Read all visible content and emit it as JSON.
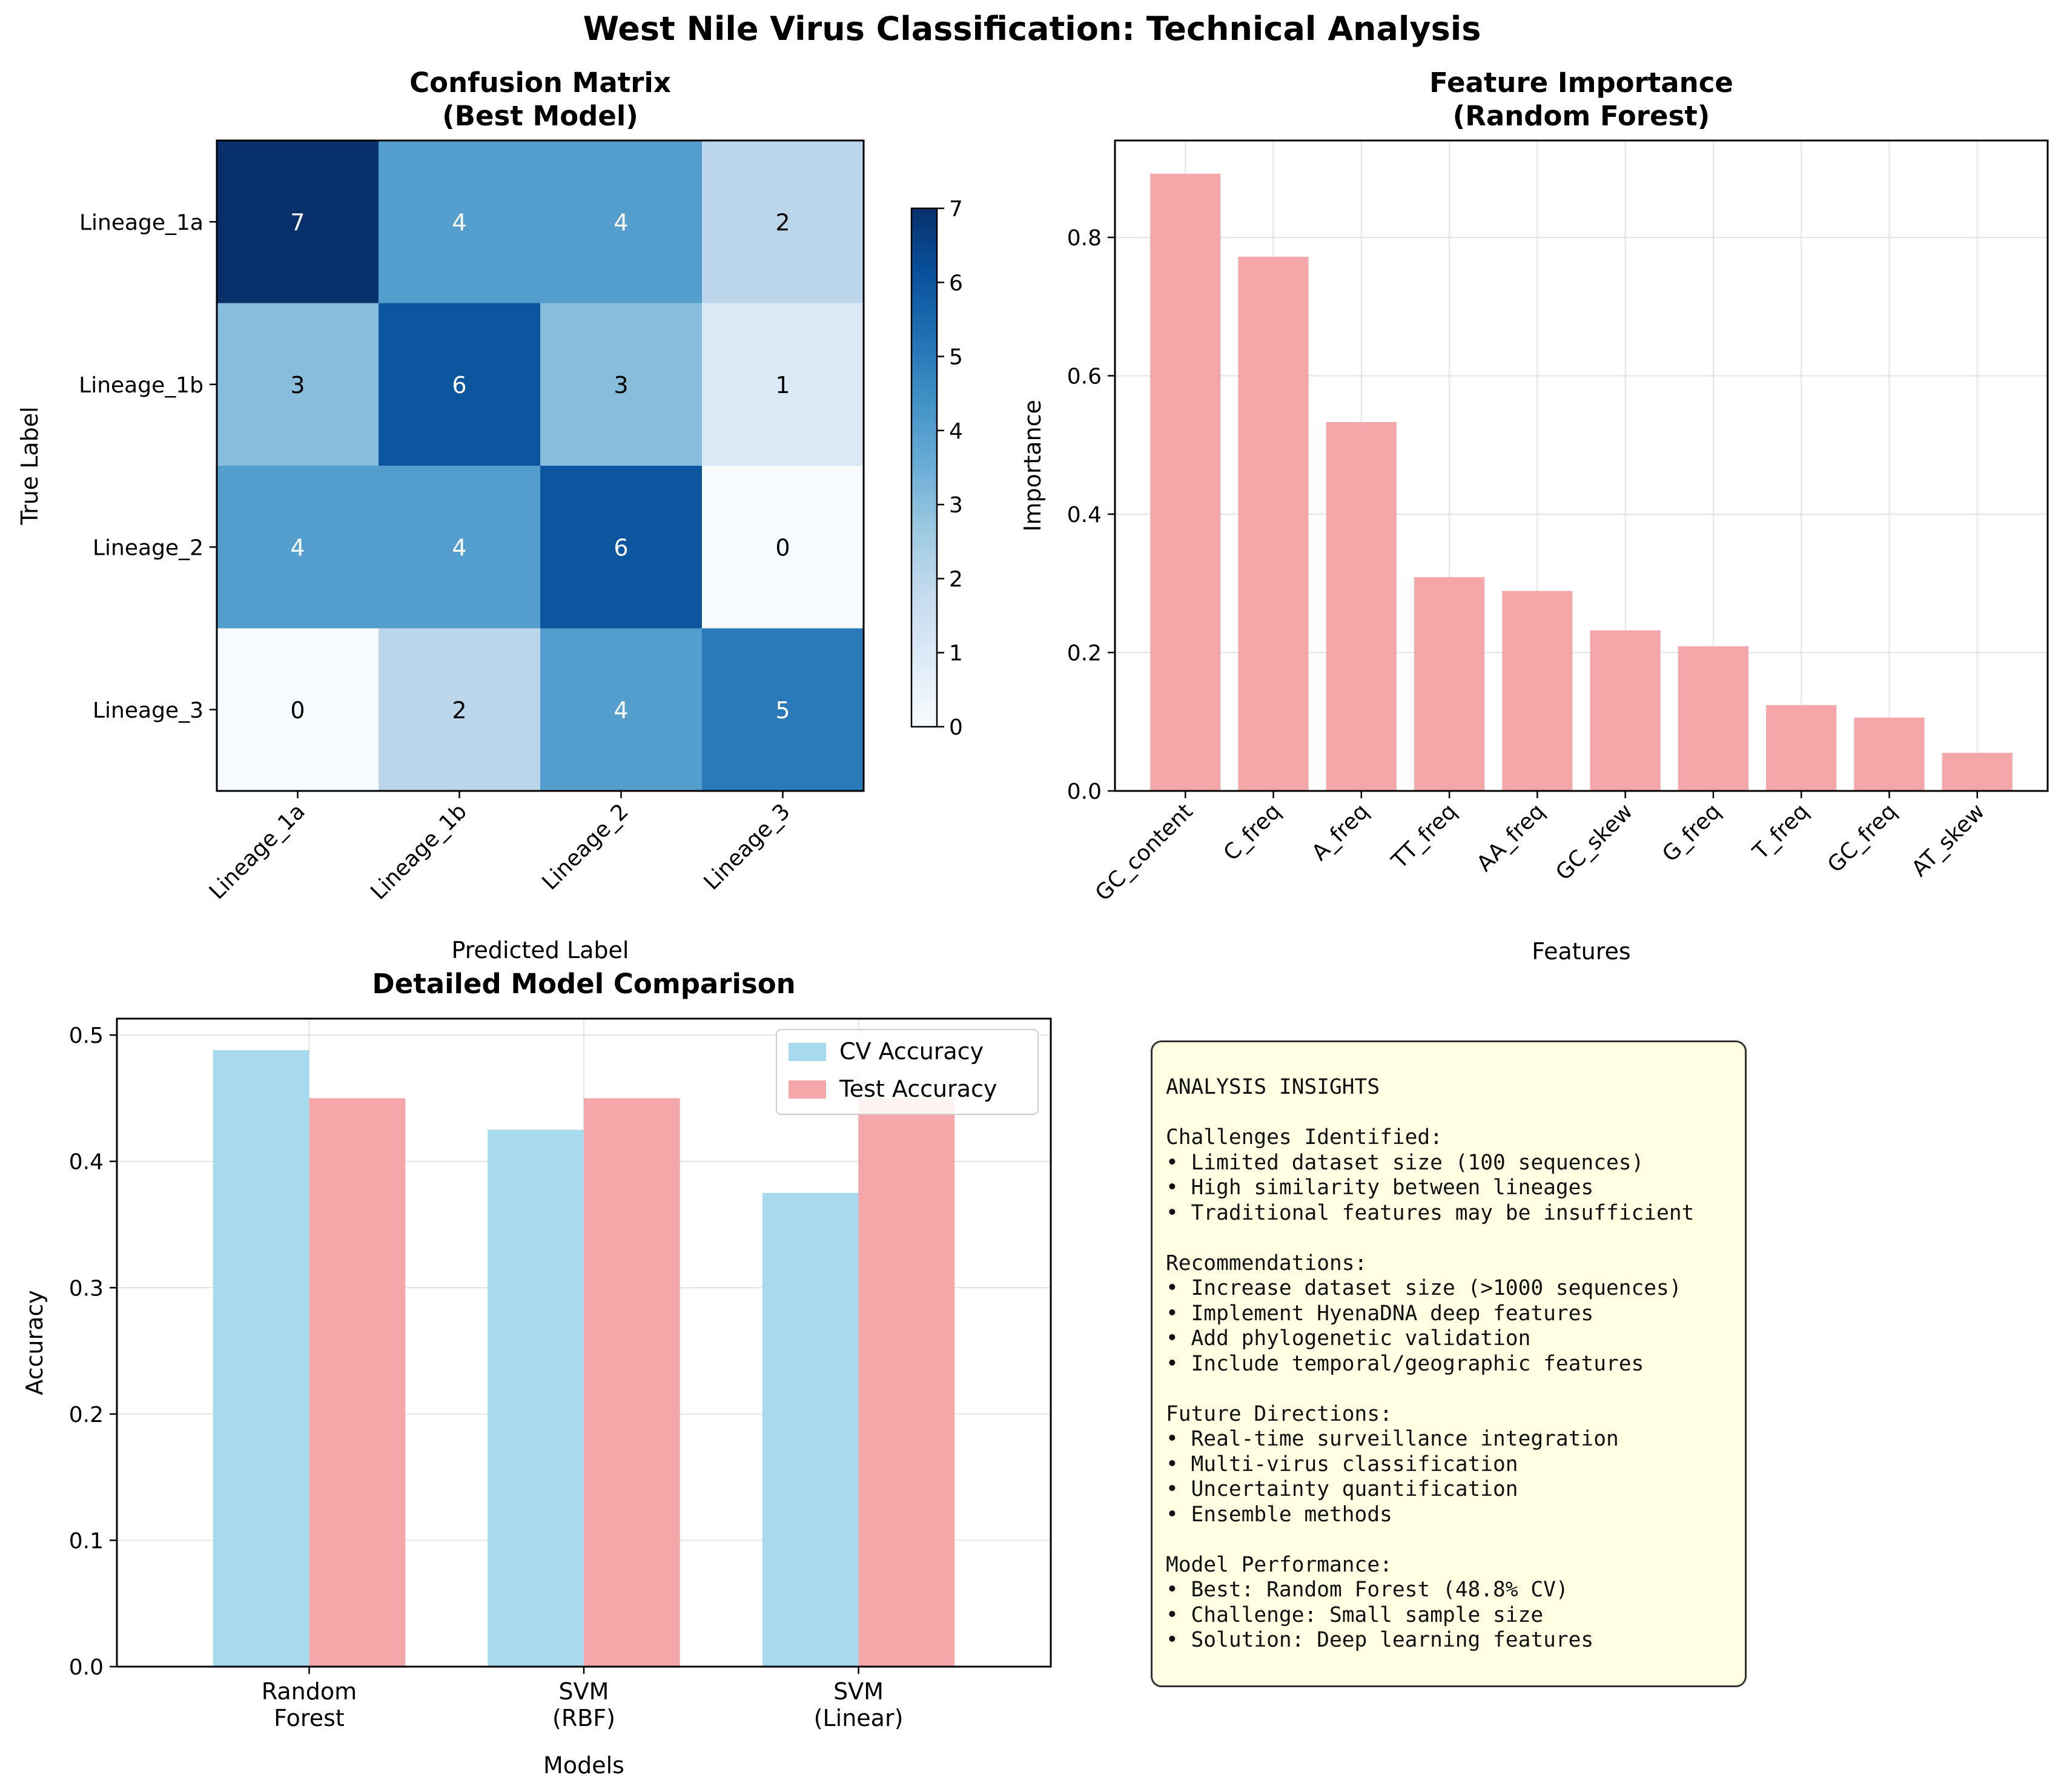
{
  "figure": {
    "title": "West Nile Virus Classification: Technical Analysis"
  },
  "colors": {
    "cv_bar": "#a8daee",
    "test_bar": "#f4a6a8",
    "feature_bar": "#f4a6a8",
    "heatmap_low": "#f7fbff",
    "heatmap_high": "#08306b",
    "insights_bg": "#ffffe4"
  },
  "chart_data": [
    {
      "type": "heatmap",
      "title": "Confusion Matrix\n(Best Model)",
      "xlabel": "Predicted Label",
      "ylabel": "True Label",
      "x_categories": [
        "Lineage_1a",
        "Lineage_1b",
        "Lineage_2",
        "Lineage_3"
      ],
      "y_categories": [
        "Lineage_1a",
        "Lineage_1b",
        "Lineage_2",
        "Lineage_3"
      ],
      "values": [
        [
          7,
          4,
          4,
          2
        ],
        [
          3,
          6,
          3,
          1
        ],
        [
          4,
          4,
          6,
          0
        ],
        [
          0,
          2,
          4,
          5
        ]
      ],
      "colorbar": {
        "min": 0,
        "max": 7,
        "ticks": [
          0,
          1,
          2,
          3,
          4,
          5,
          6,
          7
        ],
        "colormap": "Blues"
      }
    },
    {
      "type": "bar",
      "title": "Feature Importance\n(Random Forest)",
      "xlabel": "Features",
      "ylabel": "Importance",
      "categories": [
        "GC_content",
        "C_freq",
        "A_freq",
        "TT_freq",
        "AA_freq",
        "GC_skew",
        "G_freq",
        "T_freq",
        "GC_freq",
        "AT_skew"
      ],
      "values": [
        0.892,
        0.772,
        0.533,
        0.309,
        0.289,
        0.232,
        0.209,
        0.124,
        0.106,
        0.055
      ],
      "ylim": [
        0,
        0.94
      ],
      "yticks": [
        0.0,
        0.2,
        0.4,
        0.6,
        0.8
      ],
      "grid": true
    },
    {
      "type": "bar",
      "title": "Detailed Model Comparison",
      "xlabel": "Models",
      "ylabel": "Accuracy",
      "categories": [
        "Random\nForest",
        "SVM\n(RBF)",
        "SVM\n(Linear)"
      ],
      "series": [
        {
          "name": "CV Accuracy",
          "values": [
            0.488,
            0.425,
            0.375
          ]
        },
        {
          "name": "Test Accuracy",
          "values": [
            0.45,
            0.45,
            0.45
          ]
        }
      ],
      "ylim": [
        0,
        0.513
      ],
      "yticks": [
        0.0,
        0.1,
        0.2,
        0.3,
        0.4,
        0.5
      ],
      "legend": "top-right",
      "grid": true
    }
  ],
  "insights": {
    "lines": [
      "ANALYSIS INSIGHTS",
      "",
      "Challenges Identified:",
      "• Limited dataset size (100 sequences)",
      "• High similarity between lineages",
      "• Traditional features may be insufficient",
      "",
      "Recommendations:",
      "• Increase dataset size (>1000 sequences)",
      "• Implement HyenaDNA deep features",
      "• Add phylogenetic validation",
      "• Include temporal/geographic features",
      "",
      "Future Directions:",
      "• Real-time surveillance integration",
      "• Multi-virus classification",
      "• Uncertainty quantification",
      "• Ensemble methods",
      "",
      "Model Performance:",
      "• Best: Random Forest (48.8% CV)",
      "• Challenge: Small sample size",
      "• Solution: Deep learning features"
    ]
  }
}
